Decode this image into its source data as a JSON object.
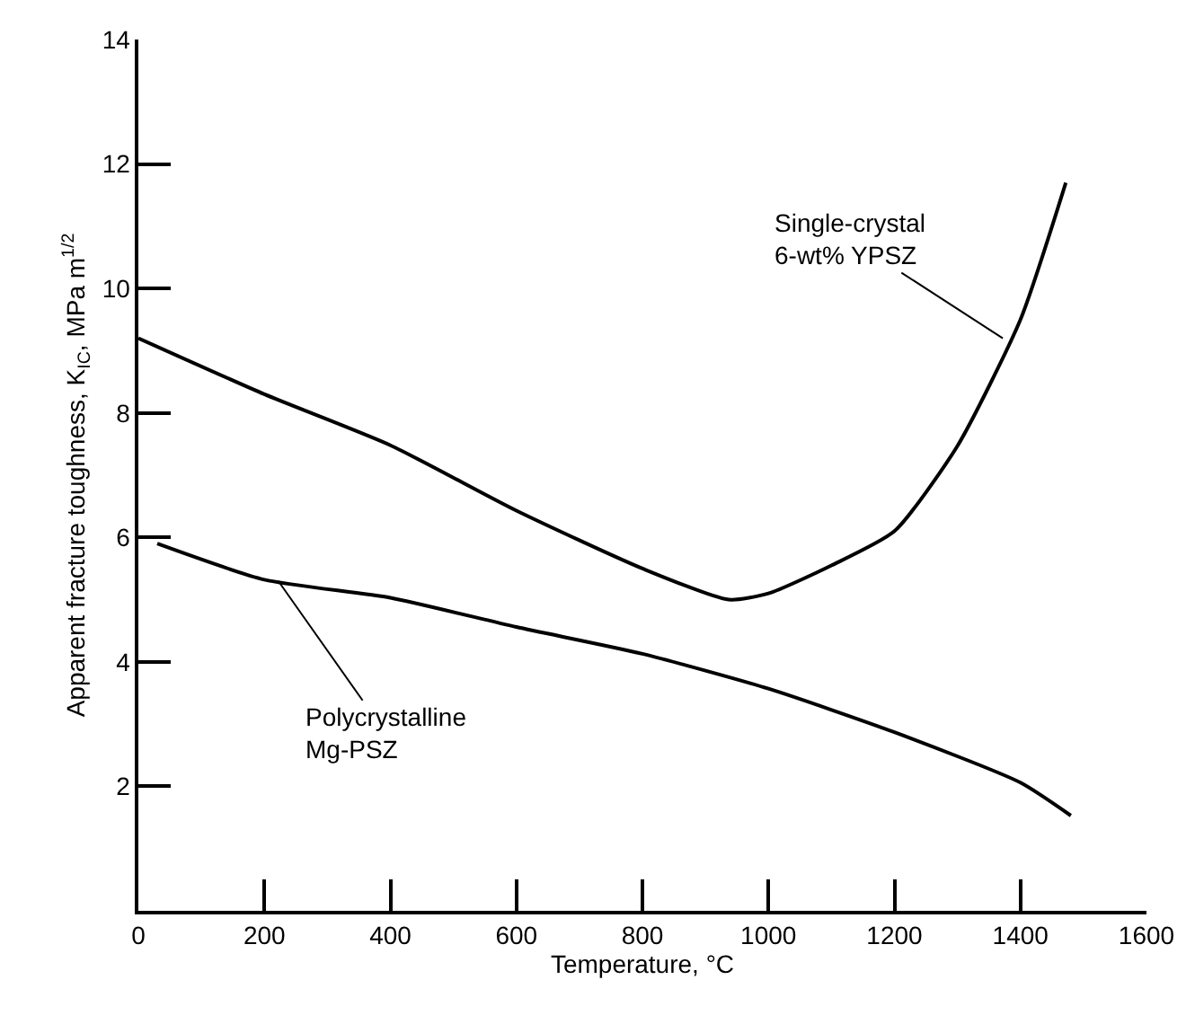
{
  "chart_data": {
    "type": "line",
    "xlabel": "Temperature, °C",
    "ylabel": "Apparent fracture toughness, K$_{IC}$, MPa m$^{1/2}$",
    "xlim": [
      0,
      1600
    ],
    "xticks": [
      0,
      200,
      400,
      600,
      800,
      1000,
      1200,
      1400,
      1600
    ],
    "ylim": [
      0,
      14
    ],
    "yticks": [
      2,
      4,
      6,
      8,
      10,
      12,
      14
    ],
    "legend": false,
    "marker": "none",
    "line_style": "solid",
    "series": [
      {
        "color": "#000000",
        "x": [
          0,
          200,
          400,
          600,
          800,
          937,
          1000,
          1100,
          1200,
          1300,
          1400,
          1472
        ],
        "values": [
          9.2,
          8.3,
          7.48,
          6.43,
          5.5,
          5.0,
          5.1,
          5.55,
          6.1,
          7.47,
          9.5,
          11.7
        ]
      },
      {
        "color": "#000000",
        "x": [
          30,
          200,
          400,
          600,
          800,
          1000,
          1200,
          1400,
          1480
        ],
        "values": [
          5.9,
          5.32,
          5.03,
          4.56,
          4.13,
          3.57,
          2.87,
          2.06,
          1.53
        ]
      }
    ],
    "annotations": [
      {
        "text": "Single-crystal\n6-wt% YPSZ",
        "x": 1372,
        "y": 9.2
      },
      {
        "text": "Polycrystalline\nMg-PSZ",
        "x": 222,
        "y": 5.3
      }
    ]
  }
}
